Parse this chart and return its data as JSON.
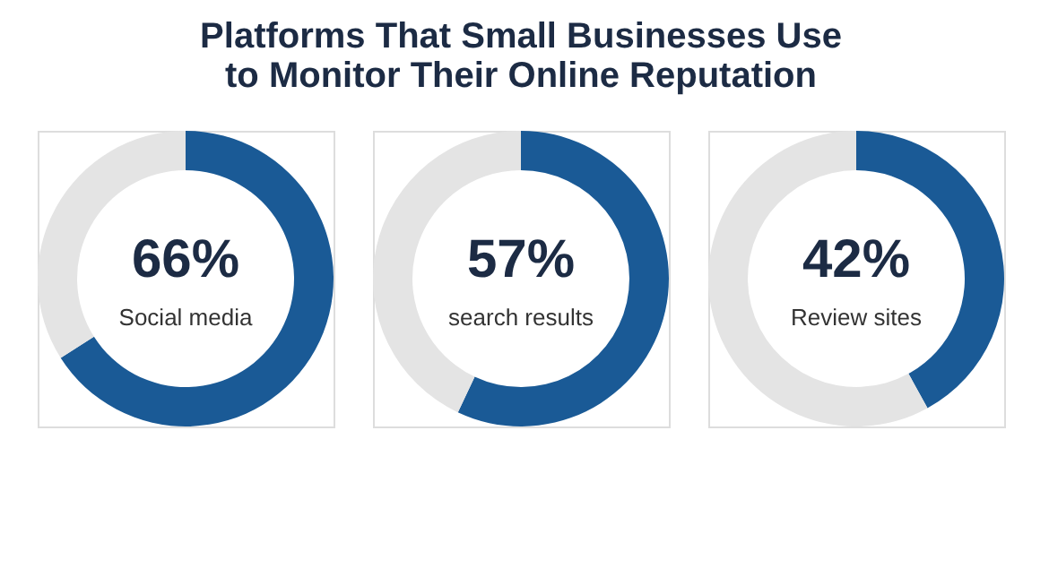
{
  "chart_data": [
    {
      "type": "donut",
      "title": "Platforms That Small Businesses Use to Monitor Their Online Reputation",
      "categories": [
        "Social media",
        null
      ],
      "values": [
        66,
        34
      ],
      "colors": [
        "#1a5a96",
        "#e4e4e4"
      ],
      "value_labels": [
        "66%",
        null
      ]
    },
    {
      "type": "donut",
      "categories": [
        "search results",
        null
      ],
      "values": [
        57,
        43
      ],
      "colors": [
        "#1a5a96",
        "#e4e4e4"
      ],
      "value_labels": [
        "57%",
        null
      ]
    },
    {
      "type": "donut",
      "categories": [
        "Review sites",
        null
      ],
      "values": [
        42,
        58
      ],
      "colors": [
        "#1a5a96",
        "#e4e4e4"
      ],
      "value_labels": [
        "42%",
        null
      ]
    }
  ]
}
